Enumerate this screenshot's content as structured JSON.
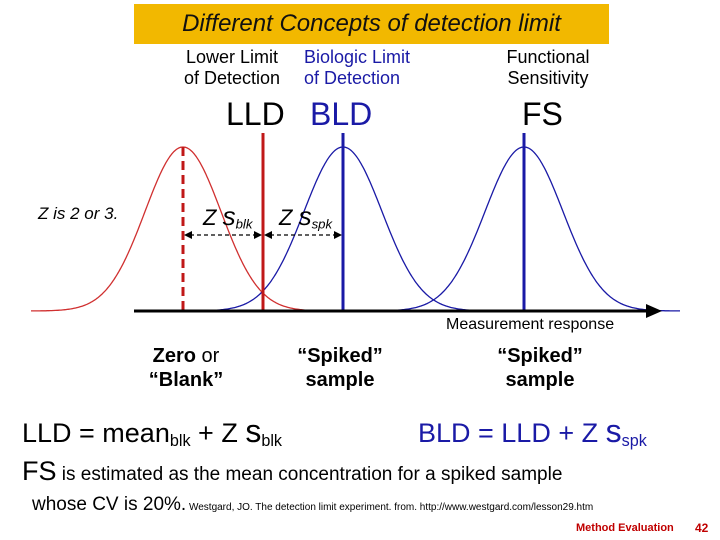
{
  "title": "Different Concepts of detection limit",
  "headers": {
    "lld_line1": "Lower Limit",
    "lld_line2": "of Detection",
    "bld_line1": "Biologic Limit",
    "bld_line2": "of Detection",
    "fs_line1": "Functional",
    "fs_line2": "Sensitivity"
  },
  "abbreviations": {
    "lld": "LLD",
    "bld": "BLD",
    "fs": "FS"
  },
  "z_note": "Z is 2 or 3.",
  "z_blk": {
    "z": "Z",
    "s": "s",
    "sub": "blk"
  },
  "z_spk": {
    "z": "Z",
    "s": "s",
    "sub": "spk"
  },
  "axis_label": "Measurement response",
  "zero_blank": {
    "line1_bold": "Zero",
    "line1_rest": " or",
    "line2": "“Blank”"
  },
  "spiked1": {
    "line1": "“Spiked”",
    "line2": "sample"
  },
  "spiked2": {
    "line1": "“Spiked”",
    "line2": "sample"
  },
  "formula_lld": {
    "a": "LLD = mean",
    "a_sub": "blk",
    "b": " + Z ",
    "s": "s",
    "s_sub": "blk"
  },
  "formula_bld": {
    "a": "BLD = LLD + Z ",
    "s": "s",
    "s_sub": "spk"
  },
  "fs_text": {
    "fs": "FS",
    "rest1": " is estimated as the mean concentration for a spiked sample",
    "line2": "whose CV is 20%.",
    "citation": " Westgard, JO. The detection limit experiment. from. http://www.westgard.com/lesson29.htm"
  },
  "footer": {
    "section": "Method Evaluation",
    "page": "42"
  },
  "colors": {
    "title_bg": "#f2b800",
    "blank_curve": "#d03030",
    "spiked_curve": "#1a1aa6",
    "lld_line": "#c01818",
    "axis": "#000000",
    "footer": "#c00000"
  }
}
